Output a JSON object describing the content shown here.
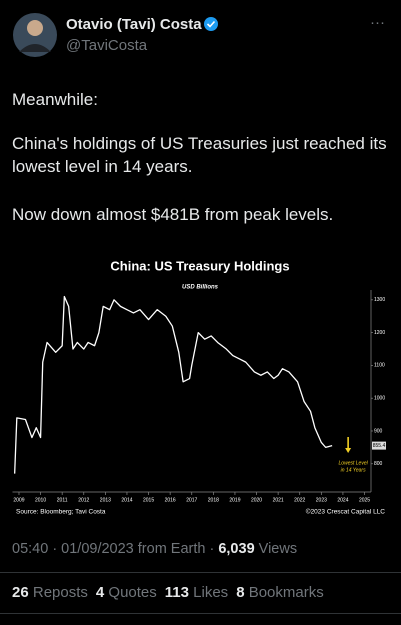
{
  "tweet": {
    "name": "Otavio (Tavi) Costa",
    "handle": "@TaviCosta",
    "more": "···",
    "paragraphs": [
      "Meanwhile:",
      "China's holdings of US Treasuries just reached its lowest level in 14 years.",
      "Now down almost $481B from peak levels."
    ],
    "meta": "05:40 · 01/09/2023 from Earth · ",
    "views": "6,039",
    "views_label": "Views",
    "stats": [
      {
        "count": "26",
        "label": "Reposts"
      },
      {
        "count": "4",
        "label": "Quotes"
      },
      {
        "count": "113",
        "label": "Likes"
      },
      {
        "count": "8",
        "label": "Bookmarks"
      }
    ]
  },
  "chart_data": {
    "type": "line",
    "title": "China: US Treasury Holdings",
    "subtitle": "USD Billions",
    "source": "Source: Bloomberg; Tavi Costa",
    "copyright": "©2023 Crescat Capital LLC",
    "annotation": [
      "Lowest Level",
      "in 14 Years"
    ],
    "annotation_color": "#f2d024",
    "color": "#ffffff",
    "x": [
      2008.8,
      2008.9,
      2009.3,
      2009.6,
      2009.8,
      2010.0,
      2010.1,
      2010.3,
      2010.7,
      2011.0,
      2011.1,
      2011.3,
      2011.5,
      2011.7,
      2012.0,
      2012.2,
      2012.5,
      2012.7,
      2012.9,
      2013.2,
      2013.4,
      2013.7,
      2014.0,
      2014.3,
      2014.6,
      2015.0,
      2015.4,
      2015.8,
      2016.1,
      2016.4,
      2016.6,
      2016.9,
      2017.0,
      2017.3,
      2017.6,
      2017.9,
      2018.2,
      2018.6,
      2018.9,
      2019.2,
      2019.5,
      2019.9,
      2020.2,
      2020.5,
      2020.8,
      2021.0,
      2021.2,
      2021.5,
      2021.9,
      2022.2,
      2022.5,
      2022.7,
      2023.0,
      2023.2,
      2023.5
    ],
    "series": [
      {
        "name": "China US Treasury Holdings",
        "color": "#ffffff",
        "values": [
          770,
          940,
          935,
          880,
          910,
          880,
          1110,
          1170,
          1140,
          1160,
          1310,
          1280,
          1150,
          1170,
          1150,
          1170,
          1160,
          1200,
          1280,
          1270,
          1300,
          1280,
          1270,
          1260,
          1270,
          1240,
          1270,
          1250,
          1220,
          1140,
          1050,
          1060,
          1100,
          1200,
          1180,
          1190,
          1170,
          1150,
          1130,
          1120,
          1110,
          1080,
          1070,
          1080,
          1060,
          1070,
          1090,
          1080,
          1050,
          990,
          960,
          910,
          865,
          850,
          855.4
        ]
      }
    ],
    "xlim": [
      2008.7,
      2025.3
    ],
    "xticks": [
      2009,
      2010,
      2011,
      2012,
      2013,
      2014,
      2015,
      2016,
      2017,
      2018,
      2019,
      2020,
      2021,
      2022,
      2023,
      2024,
      2025
    ],
    "ylim": [
      720,
      1330
    ],
    "yticks": [
      800,
      900,
      1000,
      1100,
      1200,
      1300
    ],
    "grid": false
  }
}
